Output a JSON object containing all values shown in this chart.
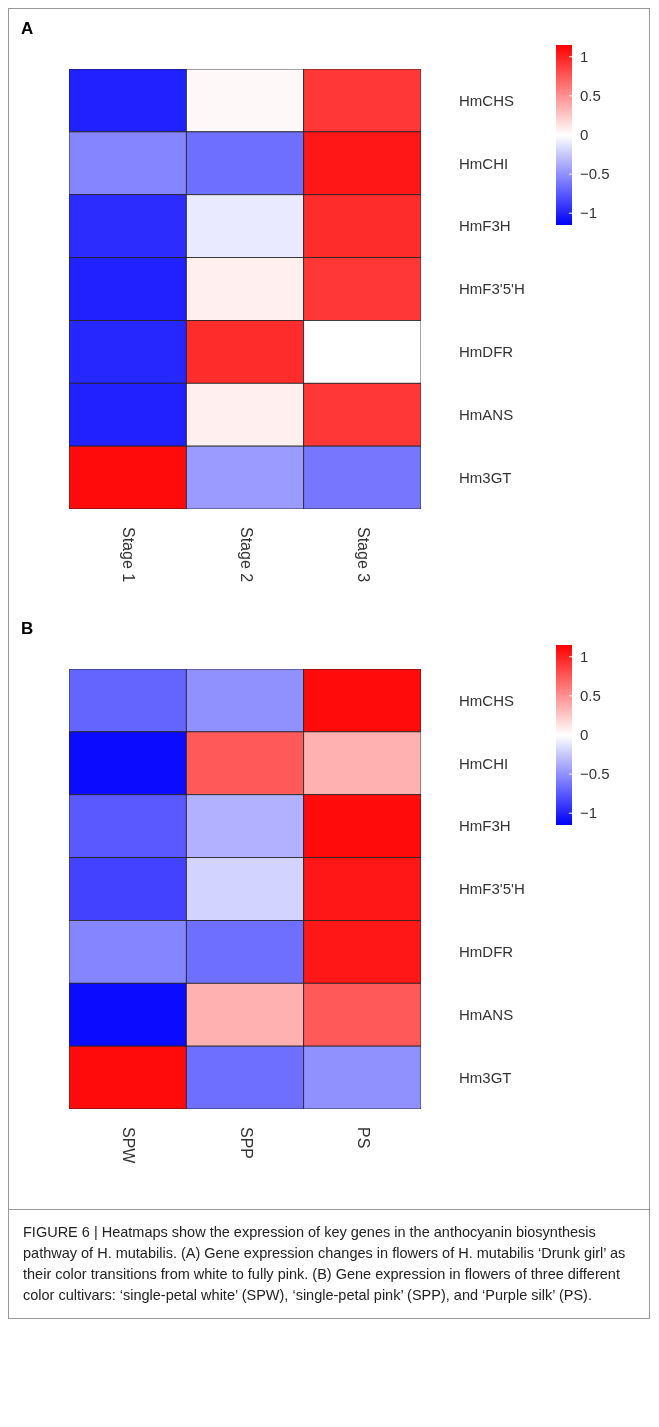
{
  "chart_data": [
    {
      "type": "heatmap",
      "title": "A",
      "categories": [
        "Stage 1",
        "Stage 2",
        "Stage 3"
      ],
      "y_categories": [
        "HmCHS",
        "HmCHI",
        "HmF3H",
        "HmF3'5'H",
        "HmDFR",
        "HmANS",
        "Hm3GT"
      ],
      "cells": [
        [
          -1.0,
          0.03,
          0.9
        ],
        [
          -0.55,
          -0.65,
          1.05
        ],
        [
          -0.95,
          -0.1,
          0.95
        ],
        [
          -1.0,
          0.07,
          0.9
        ],
        [
          -0.98,
          0.95,
          0.0
        ],
        [
          -1.0,
          0.07,
          0.9
        ],
        [
          1.1,
          -0.45,
          -0.62
        ]
      ],
      "clim": [
        -1.15,
        1.15
      ],
      "cticks": [
        1,
        0.5,
        0,
        -0.5,
        -1
      ]
    },
    {
      "type": "heatmap",
      "title": "B",
      "categories": [
        "SPW",
        "SPP",
        "PS"
      ],
      "y_categories": [
        "HmCHS",
        "HmCHI",
        "HmF3H",
        "HmF3'5'H",
        "HmDFR",
        "HmANS",
        "Hm3GT"
      ],
      "cells": [
        [
          -0.7,
          -0.5,
          1.1
        ],
        [
          -1.1,
          0.75,
          0.35
        ],
        [
          -0.75,
          -0.35,
          1.1
        ],
        [
          -0.85,
          -0.2,
          1.05
        ],
        [
          -0.55,
          -0.65,
          1.05
        ],
        [
          -1.1,
          0.35,
          0.75
        ],
        [
          1.1,
          -0.65,
          -0.5
        ]
      ],
      "clim": [
        -1.15,
        1.15
      ],
      "cticks": [
        1,
        0.5,
        0,
        -0.5,
        -1
      ],
      "annotations": [
        "FIGURE 6 | Heatmaps show the expression of key genes in the anthocyanin biosynthesis pathway of H. mutabilis. (A) Gene expression changes in flowers of H. mutabilis ‘Drunk girl’ as their color transitions from white to fully pink. (B) Gene expression in flowers of three different color cultivars: ‘single-petal white’ (SPW), ‘single-petal pink’ (SPP), and ‘Purple silk’ (PS)."
      ]
    }
  ]
}
